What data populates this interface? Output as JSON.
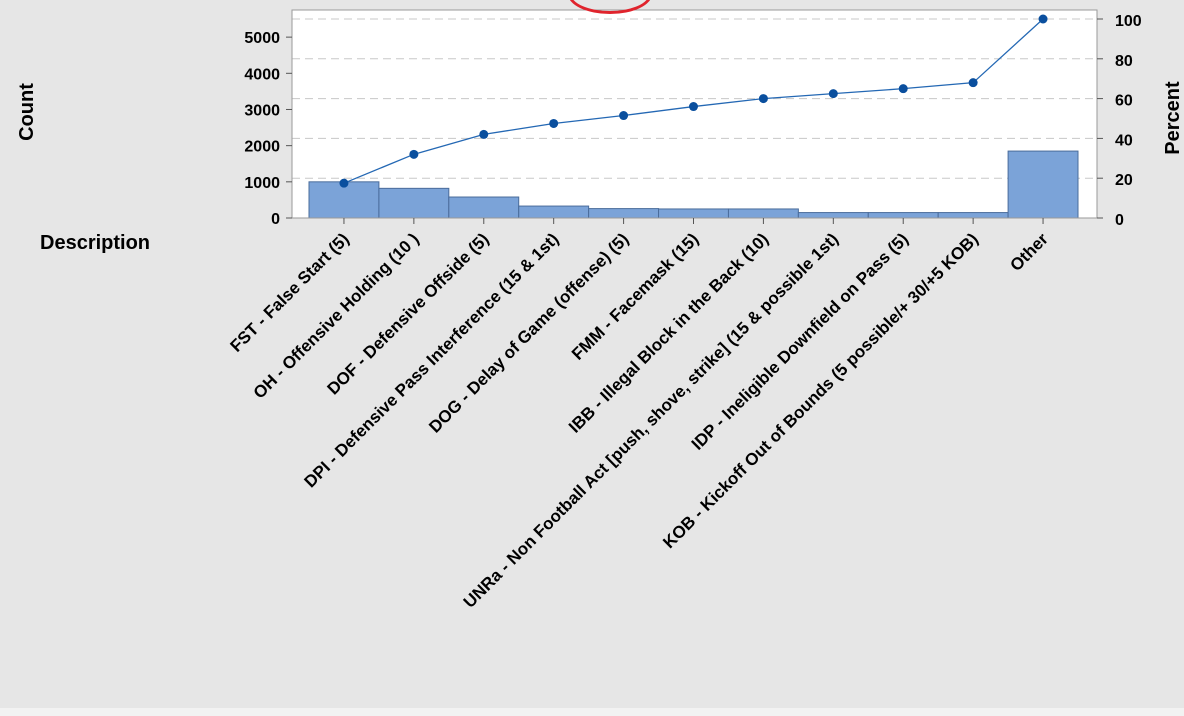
{
  "chart_data": {
    "type": "pareto",
    "categories": [
      "FST - False Start (5)",
      "OH - Offensive Holding (10 )",
      "DOF - Defensive Offside (5)",
      "DPI - Defensive Pass Interference (15 & 1st)",
      "DOG - Delay of Game (offense) (5)",
      "FMM - Facemask (15)",
      "IBB - Illegal Block in the Back (10)",
      "UNRa - Non Football Act [push, shove, strike] (15 & possible 1st)",
      "IDP - Ineligible Downfield on Pass (5)",
      "KOB - Kickoff Out of Bounds (5 possible/+ 30/+5 KOB)",
      "Other"
    ],
    "series": [
      {
        "values": [
          1000,
          820,
          580,
          330,
          260,
          250,
          250,
          150,
          150,
          150,
          1850
        ]
      },
      {
        "values": [
          17.5,
          32,
          42,
          47.5,
          51.5,
          56,
          60,
          62.5,
          65,
          68,
          100
        ]
      }
    ],
    "xlabel": "Description",
    "ylabel": "Count",
    "ylabel_right": "Percent",
    "ylim": [
      0,
      5750
    ],
    "ylim_right": [
      0,
      100
    ],
    "yticks": [
      0,
      1000,
      2000,
      3000,
      4000,
      5000
    ],
    "yticks_right": [
      0,
      20,
      40,
      60,
      80,
      100
    ],
    "grid": true,
    "colors": {
      "bars": "#7ba3d8",
      "bar_edge": "#4a6c9b",
      "line": "#2468b4",
      "marker": "#0a4f9e",
      "grid": "#c8c8c8",
      "plot_bg": "#ffffff",
      "page_bg": "#e6e6e6",
      "badge": "#e0242d"
    }
  }
}
